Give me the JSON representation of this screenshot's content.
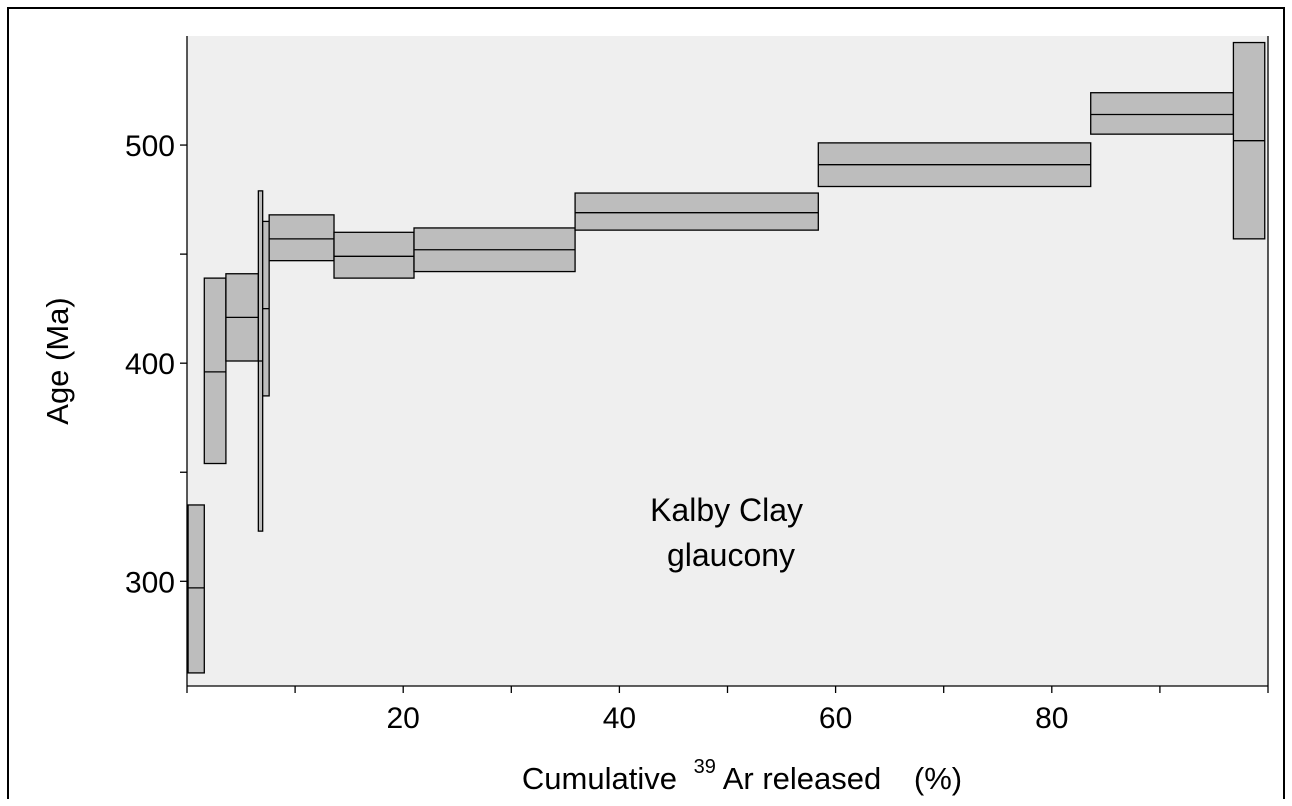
{
  "chart_data": {
    "type": "age-spectrum",
    "xlabel": {
      "prefix": "Cumulative",
      "superscript": "39",
      "suffix": "Ar released",
      "unit": "(%)"
    },
    "ylabel": "Age  (Ma)",
    "xlim": [
      0,
      100
    ],
    "ylim": [
      252,
      550
    ],
    "x_ticks": [
      0,
      10,
      20,
      30,
      40,
      50,
      60,
      70,
      80,
      90,
      100
    ],
    "x_tick_labels": [
      {
        "value": 20,
        "label": "20"
      },
      {
        "value": 40,
        "label": "40"
      },
      {
        "value": 60,
        "label": "60"
      },
      {
        "value": 80,
        "label": "80"
      }
    ],
    "y_ticks": [
      300,
      350,
      400,
      450,
      500
    ],
    "y_tick_labels": [
      {
        "value": 300,
        "label": "300"
      },
      {
        "value": 400,
        "label": "400"
      },
      {
        "value": 500,
        "label": "500"
      }
    ],
    "steps": [
      {
        "x_start": 0.1,
        "x_end": 1.6,
        "age": 297,
        "age_low": 258,
        "age_high": 335
      },
      {
        "x_start": 1.6,
        "x_end": 3.6,
        "age": 396,
        "age_low": 354,
        "age_high": 439
      },
      {
        "x_start": 3.6,
        "x_end": 6.6,
        "age": 421,
        "age_low": 401,
        "age_high": 441
      },
      {
        "x_start": 6.6,
        "x_end": 7.0,
        "age": 401,
        "age_low": 323,
        "age_high": 479
      },
      {
        "x_start": 7.0,
        "x_end": 7.6,
        "age": 425,
        "age_low": 385,
        "age_high": 465
      },
      {
        "x_start": 7.6,
        "x_end": 13.6,
        "age": 457,
        "age_low": 447,
        "age_high": 468
      },
      {
        "x_start": 13.6,
        "x_end": 21.0,
        "age": 449,
        "age_low": 439,
        "age_high": 460
      },
      {
        "x_start": 21.0,
        "x_end": 35.9,
        "age": 452,
        "age_low": 442,
        "age_high": 462
      },
      {
        "x_start": 35.9,
        "x_end": 58.4,
        "age": 469,
        "age_low": 461,
        "age_high": 478
      },
      {
        "x_start": 58.4,
        "x_end": 83.6,
        "age": 491,
        "age_low": 481,
        "age_high": 501
      },
      {
        "x_start": 83.6,
        "x_end": 96.8,
        "age": 514,
        "age_low": 505,
        "age_high": 524
      },
      {
        "x_start": 96.8,
        "x_end": 99.7,
        "age": 502,
        "age_low": 457,
        "age_high": 547
      }
    ],
    "annotation": [
      "Kalby Clay",
      "glaucony"
    ],
    "colors": {
      "plot_background": "#efefef",
      "box_fill": "#bdbdbd",
      "box_stroke": "#000000"
    },
    "grid": false,
    "legend": "none"
  }
}
